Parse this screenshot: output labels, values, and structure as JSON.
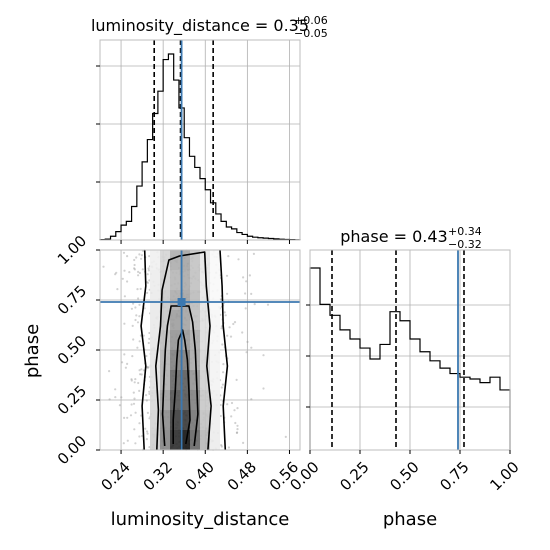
{
  "chart_data": {
    "type": "corner",
    "params": [
      "luminosity_distance",
      "phase"
    ],
    "truths": {
      "luminosity_distance": 0.355,
      "phase": 0.74
    },
    "titles": {
      "luminosity_distance": {
        "name": "luminosity_distance",
        "eq": " = 0.35",
        "plus": "+0.06",
        "minus": "−0.05"
      },
      "phase": {
        "name": "phase",
        "eq": " = 0.43",
        "plus": "+0.34",
        "minus": "−0.32"
      }
    },
    "xlabels": {
      "luminosity_distance": "luminosity_distance",
      "phase": "phase"
    },
    "ylabel": "phase",
    "ld_axis": {
      "xlim": [
        0.2,
        0.58
      ],
      "ticks": [
        0.24,
        0.32,
        0.4,
        0.48,
        0.56
      ],
      "ticklabels": [
        "0.24",
        "0.32",
        "0.40",
        "0.48",
        "0.56"
      ]
    },
    "phase_axis": {
      "lim": [
        0.0,
        1.0
      ],
      "ticks": [
        0.0,
        0.25,
        0.5,
        0.75,
        1.0
      ],
      "ticklabels": [
        "0.00",
        "0.25",
        "0.50",
        "0.75",
        "1.00"
      ]
    },
    "ld_hist": {
      "bin_edges": [
        0.2,
        0.21,
        0.22,
        0.23,
        0.24,
        0.25,
        0.26,
        0.27,
        0.28,
        0.29,
        0.3,
        0.31,
        0.32,
        0.33,
        0.34,
        0.35,
        0.36,
        0.37,
        0.38,
        0.39,
        0.4,
        0.41,
        0.42,
        0.43,
        0.44,
        0.45,
        0.46,
        0.47,
        0.48,
        0.49,
        0.5,
        0.51,
        0.52,
        0.53,
        0.54,
        0.55,
        0.56,
        0.57,
        0.58
      ],
      "counts": [
        0.002,
        0.005,
        0.02,
        0.045,
        0.08,
        0.1,
        0.18,
        0.29,
        0.42,
        0.54,
        0.68,
        0.8,
        0.97,
        1.0,
        0.86,
        0.71,
        0.55,
        0.45,
        0.39,
        0.33,
        0.27,
        0.2,
        0.14,
        0.1,
        0.07,
        0.06,
        0.04,
        0.03,
        0.02,
        0.015,
        0.012,
        0.01,
        0.008,
        0.006,
        0.004,
        0.003,
        0.002,
        0.001
      ],
      "quantiles": [
        0.303,
        0.353,
        0.415
      ]
    },
    "phase_hist": {
      "bin_edges": [
        0.0,
        0.05,
        0.1,
        0.15,
        0.2,
        0.25,
        0.3,
        0.35,
        0.4,
        0.45,
        0.5,
        0.55,
        0.6,
        0.65,
        0.7,
        0.75,
        0.8,
        0.85,
        0.9,
        0.95,
        1.0
      ],
      "counts": [
        1.0,
        0.8,
        0.74,
        0.66,
        0.61,
        0.56,
        0.5,
        0.58,
        0.76,
        0.71,
        0.61,
        0.54,
        0.49,
        0.45,
        0.42,
        0.4,
        0.39,
        0.37,
        0.4,
        0.33
      ],
      "quantiles": [
        0.11,
        0.43,
        0.77
      ]
    },
    "density_2d": {
      "center_ld": 0.355,
      "density_shades": [
        0.15,
        0.15,
        0.18,
        0.22,
        0.3,
        0.42,
        0.55,
        0.68,
        0.85,
        0.98
      ]
    },
    "contours": [
      [
        [
          0.363,
          0.03
        ],
        [
          0.371,
          0.15
        ],
        [
          0.369,
          0.3
        ],
        [
          0.366,
          0.45
        ],
        [
          0.361,
          0.55
        ],
        [
          0.357,
          0.6
        ],
        [
          0.349,
          0.55
        ],
        [
          0.346,
          0.45
        ],
        [
          0.343,
          0.3
        ],
        [
          0.339,
          0.15
        ],
        [
          0.339,
          0.03
        ]
      ],
      [
        [
          0.379,
          0.02
        ],
        [
          0.386,
          0.18
        ],
        [
          0.384,
          0.32
        ],
        [
          0.381,
          0.5
        ],
        [
          0.376,
          0.64
        ],
        [
          0.369,
          0.72
        ],
        [
          0.335,
          0.72
        ],
        [
          0.328,
          0.62
        ],
        [
          0.324,
          0.5
        ],
        [
          0.321,
          0.32
        ],
        [
          0.319,
          0.18
        ],
        [
          0.323,
          0.02
        ]
      ],
      [
        [
          0.405,
          0.0
        ],
        [
          0.411,
          0.22
        ],
        [
          0.403,
          0.42
        ],
        [
          0.409,
          0.62
        ],
        [
          0.402,
          0.82
        ],
        [
          0.399,
          0.99
        ],
        [
          0.351,
          0.97
        ],
        [
          0.331,
          0.95
        ],
        [
          0.318,
          0.8
        ],
        [
          0.315,
          0.62
        ],
        [
          0.306,
          0.42
        ],
        [
          0.311,
          0.2
        ],
        [
          0.308,
          0.0
        ]
      ],
      [
        [
          0.438,
          0.0
        ],
        [
          0.434,
          0.22
        ],
        [
          0.442,
          0.42
        ],
        [
          0.434,
          0.62
        ],
        [
          0.432,
          0.82
        ],
        [
          0.428,
          1.0
        ]
      ],
      [
        [
          0.285,
          1.0
        ],
        [
          0.287,
          0.82
        ],
        [
          0.278,
          0.62
        ],
        [
          0.287,
          0.42
        ],
        [
          0.28,
          0.22
        ],
        [
          0.284,
          0.0
        ]
      ]
    ]
  }
}
